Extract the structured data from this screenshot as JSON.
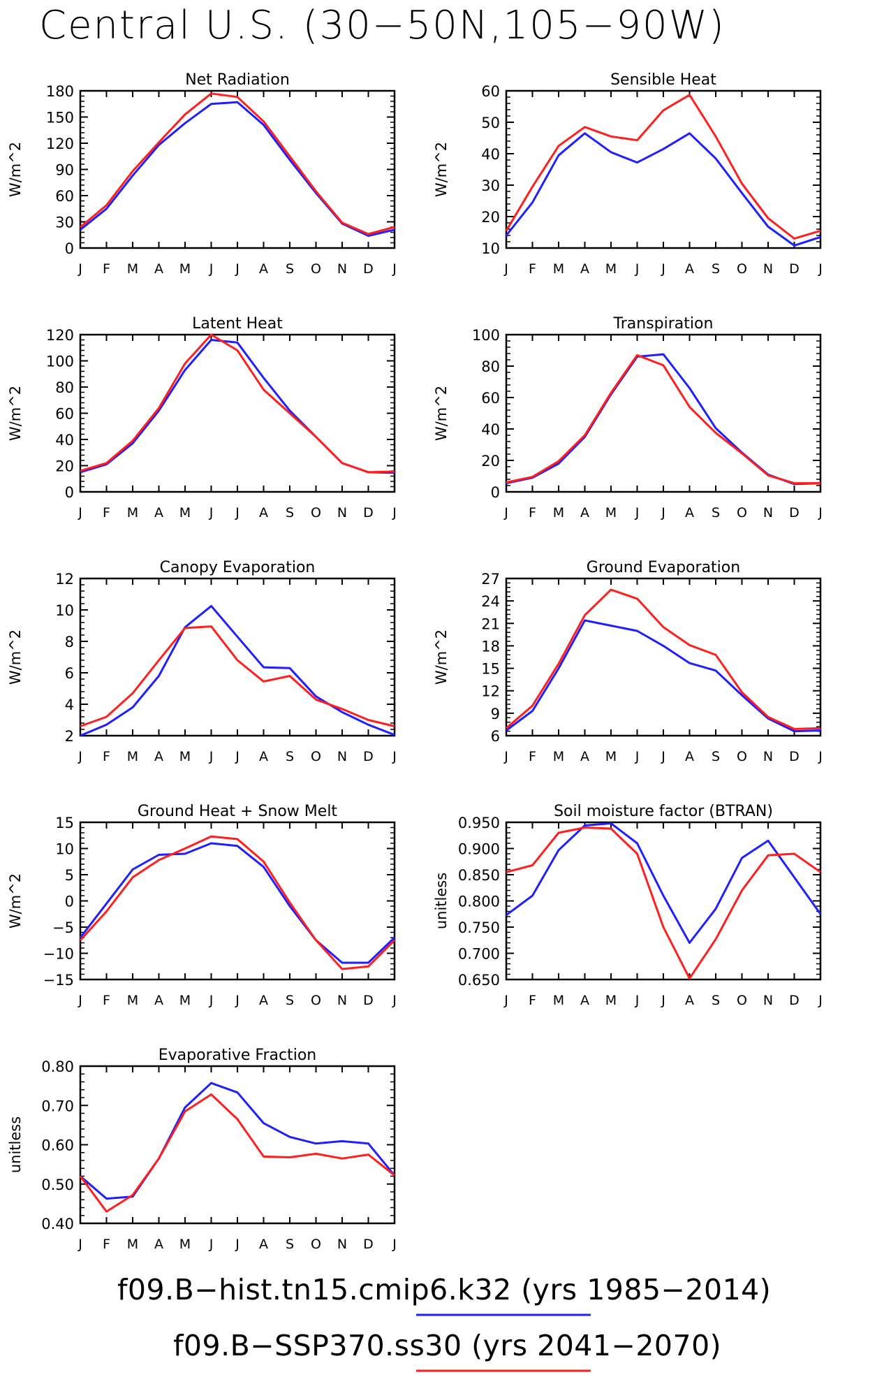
{
  "figure": {
    "title": "Central U.S. (30−50N,105−90W)",
    "legend": [
      {
        "label": "f09.B−hist.tn15.cmip6.k32 (yrs 1985−2014)",
        "color": "#1f1fff"
      },
      {
        "label": "f09.B−SSP370.ss30 (yrs 2041−2070)",
        "color": "#ff1f1f"
      }
    ]
  },
  "chart_data": [
    {
      "type": "line",
      "title": "Net Radiation",
      "ylabel": "W/m^2",
      "categories": [
        "J",
        "F",
        "M",
        "A",
        "M",
        "J",
        "J",
        "A",
        "S",
        "O",
        "N",
        "D",
        "J"
      ],
      "ylim": [
        0,
        180
      ],
      "yticks": [
        "0",
        "30",
        "60",
        "90",
        "120",
        "150",
        "180"
      ],
      "series": [
        {
          "color": "#1f1fff",
          "values": [
            21,
            45,
            83,
            118,
            143,
            165,
            167,
            141,
            101,
            63,
            28,
            14,
            21
          ]
        },
        {
          "color": "#ff1f1f",
          "values": [
            24,
            49,
            88,
            121,
            153,
            177,
            173,
            145,
            105,
            65,
            29,
            16,
            24
          ]
        }
      ]
    },
    {
      "type": "line",
      "title": "Sensible Heat",
      "ylabel": "W/m^2",
      "categories": [
        "J",
        "F",
        "M",
        "A",
        "M",
        "J",
        "J",
        "A",
        "S",
        "O",
        "N",
        "D",
        "J"
      ],
      "ylim": [
        10,
        60
      ],
      "yticks": [
        "10",
        "20",
        "30",
        "40",
        "50",
        "60"
      ],
      "series": [
        {
          "color": "#1f1fff",
          "values": [
            14,
            24.5,
            39.5,
            46.5,
            40.5,
            37.2,
            41.5,
            46.5,
            38.5,
            27.5,
            16.8,
            10.8,
            13.5
          ]
        },
        {
          "color": "#ff1f1f",
          "values": [
            15.5,
            29.5,
            42.5,
            48.5,
            45.5,
            44.3,
            53.8,
            58.7,
            45.5,
            30.5,
            19.5,
            13,
            15.5
          ]
        }
      ]
    },
    {
      "type": "line",
      "title": "Latent Heat",
      "ylabel": "W/m^2",
      "categories": [
        "J",
        "F",
        "M",
        "A",
        "M",
        "J",
        "J",
        "A",
        "S",
        "O",
        "N",
        "D",
        "J"
      ],
      "ylim": [
        0,
        120
      ],
      "yticks": [
        "0",
        "20",
        "40",
        "60",
        "80",
        "100",
        "120"
      ],
      "series": [
        {
          "color": "#1f1fff",
          "values": [
            15,
            21,
            37,
            62,
            93,
            116,
            114,
            87,
            62,
            42,
            22,
            15,
            14.5
          ]
        },
        {
          "color": "#ff1f1f",
          "values": [
            16,
            22,
            39,
            64,
            98,
            120,
            108,
            78,
            60,
            42,
            22,
            15,
            15.5
          ]
        }
      ]
    },
    {
      "type": "line",
      "title": "Transpiration",
      "ylabel": "W/m^2",
      "categories": [
        "J",
        "F",
        "M",
        "A",
        "M",
        "J",
        "J",
        "A",
        "S",
        "O",
        "N",
        "D",
        "J"
      ],
      "ylim": [
        0,
        100
      ],
      "yticks": [
        "0",
        "20",
        "40",
        "60",
        "80",
        "100"
      ],
      "series": [
        {
          "color": "#1f1fff",
          "values": [
            5.5,
            9,
            18,
            35,
            62,
            86,
            87.5,
            66,
            40.5,
            25,
            11,
            5,
            5.5
          ]
        },
        {
          "color": "#ff1f1f",
          "values": [
            6,
            9.5,
            19.5,
            36,
            63,
            87,
            80.5,
            54,
            37.5,
            24.5,
            10.5,
            5.5,
            5.5
          ]
        }
      ]
    },
    {
      "type": "line",
      "title": "Canopy Evaporation",
      "ylabel": "W/m^2",
      "categories": [
        "J",
        "F",
        "M",
        "A",
        "M",
        "J",
        "J",
        "A",
        "S",
        "O",
        "N",
        "D",
        "J"
      ],
      "ylim": [
        2,
        12
      ],
      "yticks": [
        "2",
        "4",
        "6",
        "8",
        "10",
        "12"
      ],
      "series": [
        {
          "color": "#1f1fff",
          "values": [
            2,
            2.7,
            3.8,
            5.8,
            8.9,
            10.25,
            8.3,
            6.35,
            6.3,
            4.5,
            3.5,
            2.7,
            2.05
          ]
        },
        {
          "color": "#ff1f1f",
          "values": [
            2.6,
            3.2,
            4.7,
            6.8,
            8.85,
            8.95,
            6.8,
            5.45,
            5.8,
            4.3,
            3.7,
            3,
            2.6
          ]
        }
      ]
    },
    {
      "type": "line",
      "title": "Ground Evaporation",
      "ylabel": "W/m^2",
      "categories": [
        "J",
        "F",
        "M",
        "A",
        "M",
        "J",
        "J",
        "A",
        "S",
        "O",
        "N",
        "D",
        "J"
      ],
      "ylim": [
        6,
        27
      ],
      "yticks": [
        "6",
        "9",
        "12",
        "15",
        "18",
        "21",
        "24",
        "27"
      ],
      "series": [
        {
          "color": "#1f1fff",
          "values": [
            6.7,
            9.3,
            15,
            21.4,
            20.7,
            20,
            18,
            15.7,
            14.7,
            11.4,
            8.3,
            6.6,
            6.7
          ]
        },
        {
          "color": "#ff1f1f",
          "values": [
            7,
            10,
            15.6,
            22.1,
            25.5,
            24.3,
            20.5,
            18.1,
            16.8,
            11.8,
            8.5,
            6.9,
            7
          ]
        }
      ]
    },
    {
      "type": "line",
      "title": "Ground Heat + Snow Melt",
      "ylabel": "W/m^2",
      "categories": [
        "J",
        "F",
        "M",
        "A",
        "M",
        "J",
        "J",
        "A",
        "S",
        "O",
        "N",
        "D",
        "J"
      ],
      "ylim": [
        -15,
        15
      ],
      "yticks": [
        "−15",
        "−10",
        "−5",
        "0",
        "5",
        "10",
        "15"
      ],
      "series": [
        {
          "color": "#1f1fff",
          "values": [
            -7,
            -0.5,
            6,
            8.8,
            9,
            11,
            10.5,
            6.5,
            -1,
            -7.5,
            -11.8,
            -11.8,
            -7
          ]
        },
        {
          "color": "#ff1f1f",
          "values": [
            -7.5,
            -2,
            4.5,
            7.8,
            10,
            12.3,
            11.8,
            7.5,
            -0.3,
            -7.5,
            -13,
            -12.5,
            -7.5
          ]
        }
      ]
    },
    {
      "type": "line",
      "title": "Soil moisture factor (BTRAN)",
      "ylabel": "unitless",
      "categories": [
        "J",
        "F",
        "M",
        "A",
        "M",
        "J",
        "J",
        "A",
        "S",
        "O",
        "N",
        "D",
        "J"
      ],
      "ylim": [
        0.65,
        0.95
      ],
      "yticks": [
        "0.650",
        "0.700",
        "0.750",
        "0.800",
        "0.850",
        "0.900",
        "0.950"
      ],
      "series": [
        {
          "color": "#1f1fff",
          "values": [
            0.773,
            0.81,
            0.897,
            0.944,
            0.948,
            0.91,
            0.81,
            0.72,
            0.785,
            0.882,
            0.915,
            0.845,
            0.775
          ]
        },
        {
          "color": "#ff1f1f",
          "values": [
            0.855,
            0.868,
            0.93,
            0.94,
            0.938,
            0.89,
            0.75,
            0.652,
            0.727,
            0.82,
            0.887,
            0.89,
            0.855
          ]
        }
      ]
    },
    {
      "type": "line",
      "title": "Evaporative Fraction",
      "ylabel": "unitless",
      "categories": [
        "J",
        "F",
        "M",
        "A",
        "M",
        "J",
        "J",
        "A",
        "S",
        "O",
        "N",
        "D",
        "J"
      ],
      "ylim": [
        0.4,
        0.8
      ],
      "yticks": [
        "0.40",
        "0.50",
        "0.60",
        "0.70",
        "0.80"
      ],
      "series": [
        {
          "color": "#1f1fff",
          "values": [
            0.52,
            0.463,
            0.468,
            0.565,
            0.695,
            0.757,
            0.733,
            0.655,
            0.62,
            0.603,
            0.609,
            0.603,
            0.522
          ]
        },
        {
          "color": "#ff1f1f",
          "values": [
            0.52,
            0.43,
            0.472,
            0.565,
            0.685,
            0.728,
            0.665,
            0.57,
            0.568,
            0.577,
            0.565,
            0.575,
            0.522
          ]
        }
      ]
    }
  ]
}
